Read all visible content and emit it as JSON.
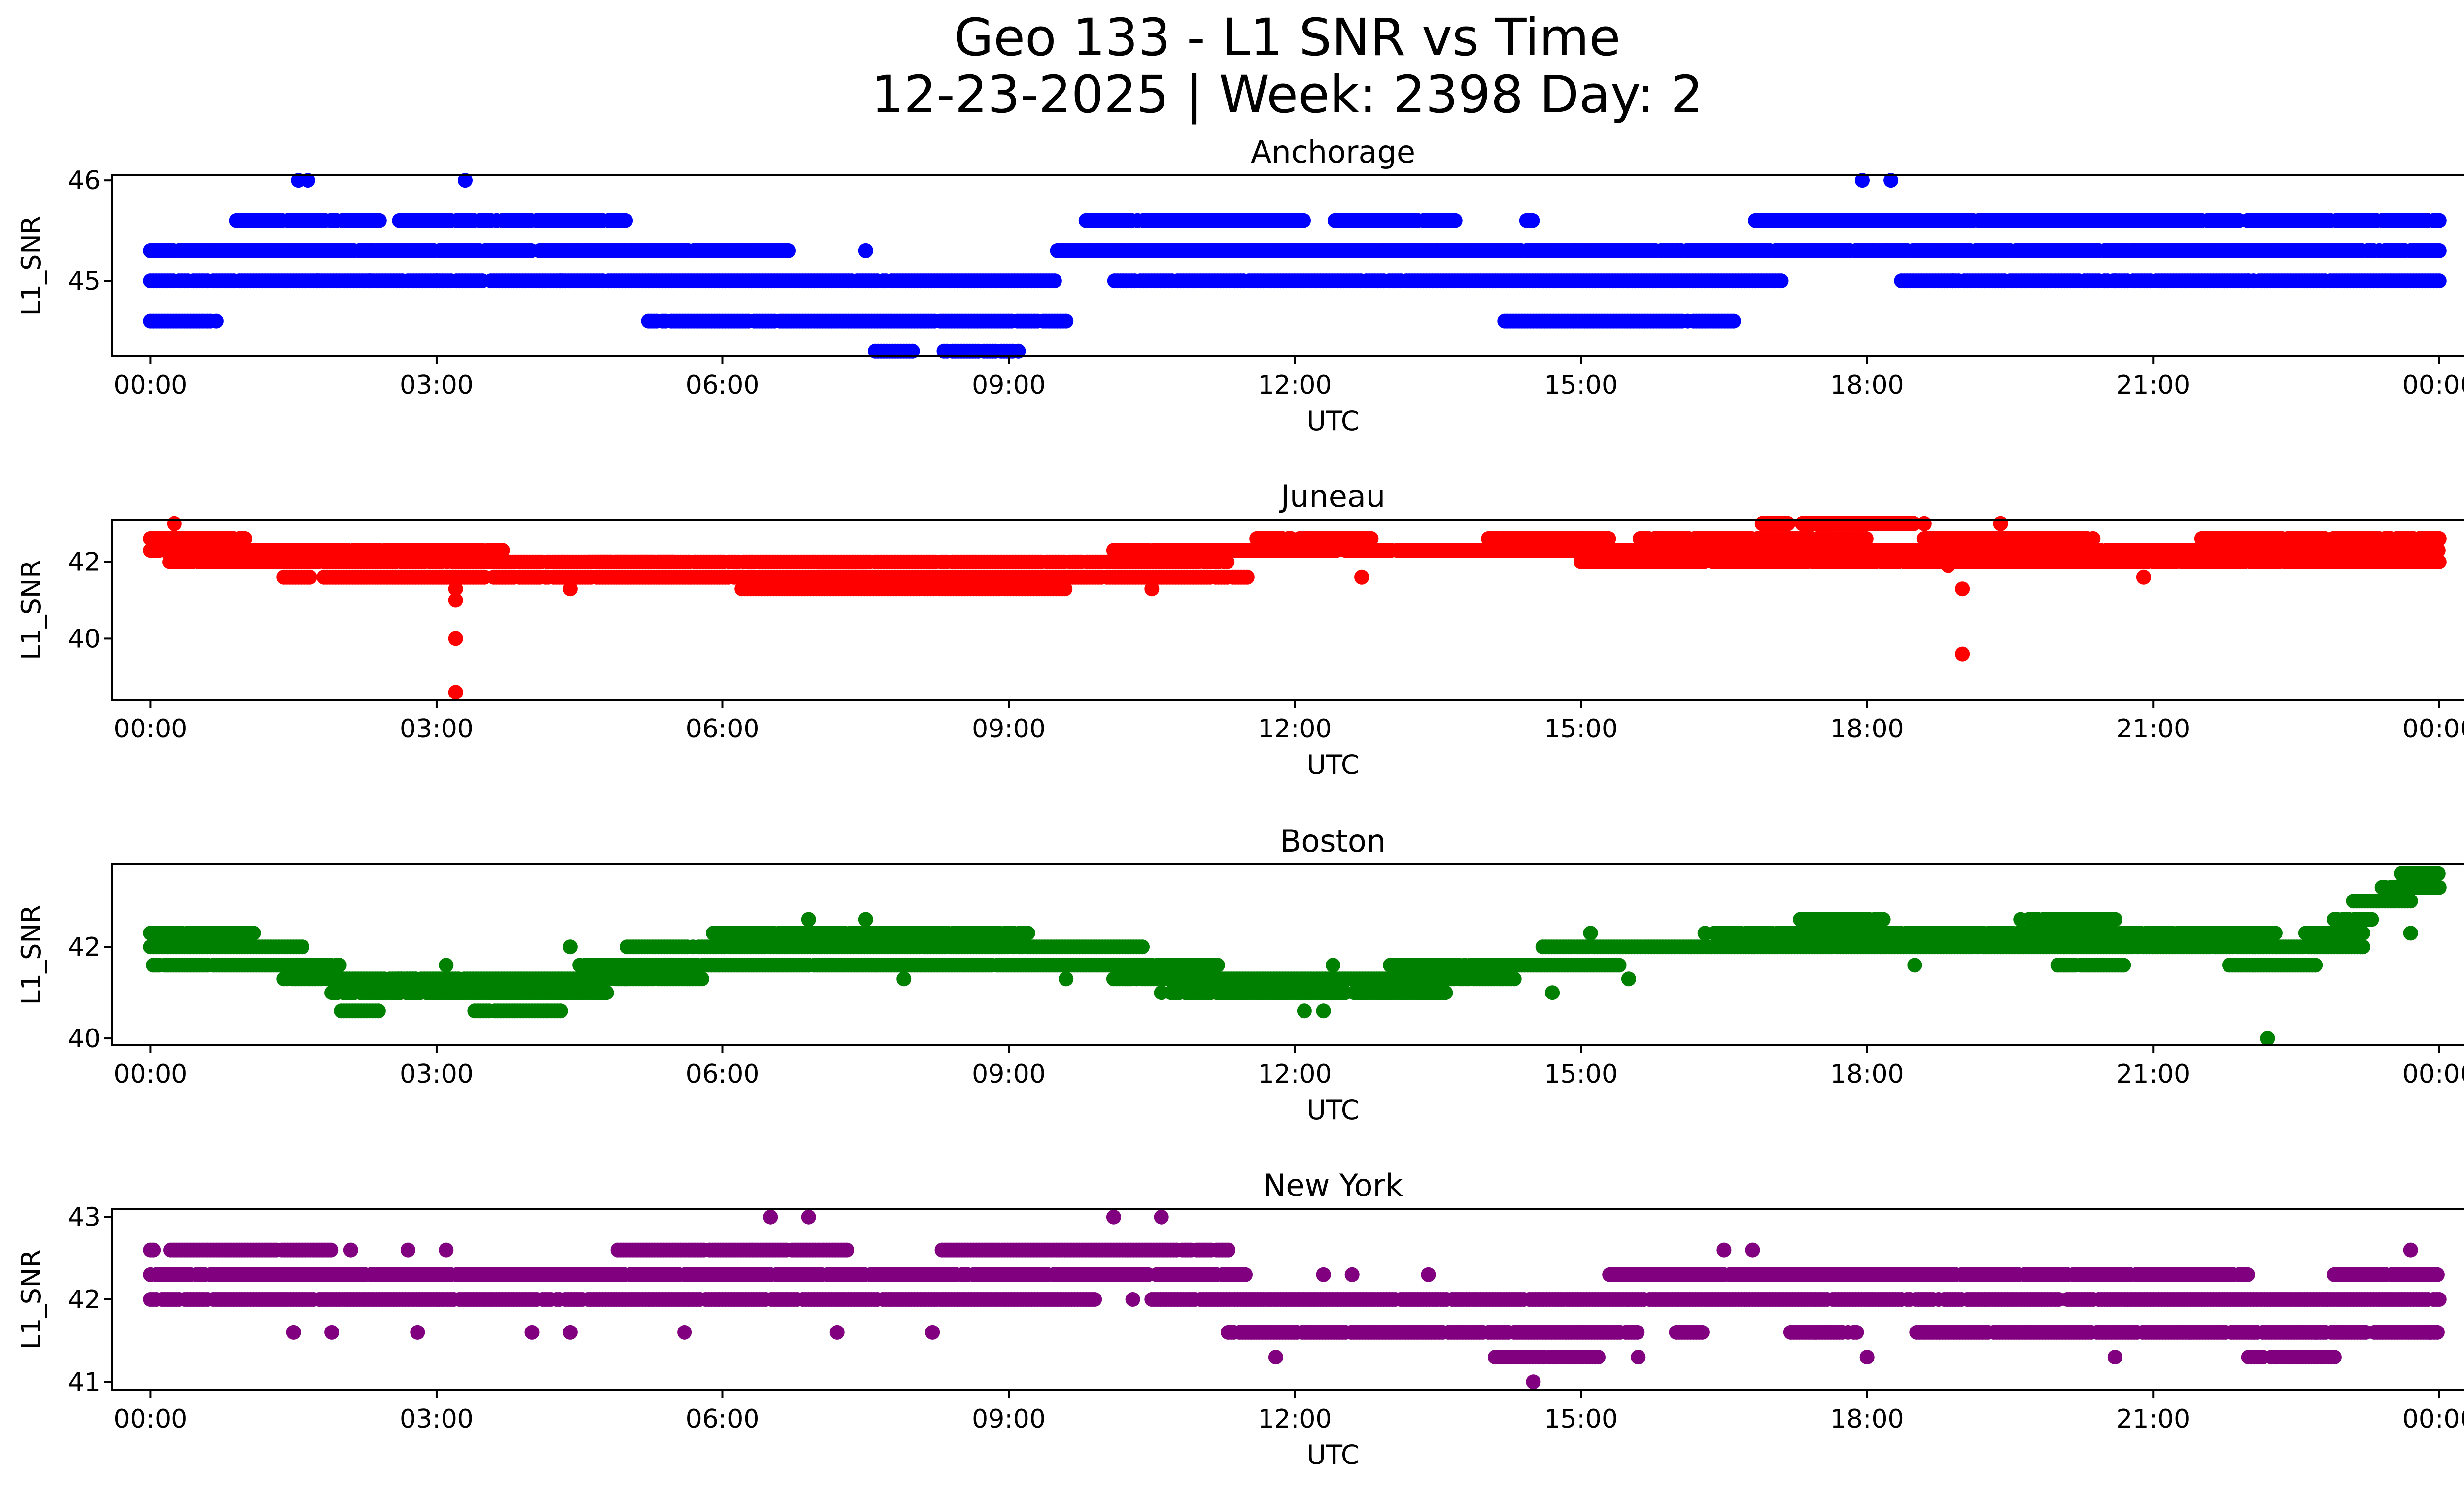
{
  "figure": {
    "title_line1": "Geo 133 - L1 SNR vs Time",
    "title_line2": "12-23-2025 | Week: 2398 Day: 2"
  },
  "chart_data": [
    {
      "type": "scatter",
      "title": "Anchorage",
      "xlabel": "UTC",
      "ylabel": "L1_SNR",
      "color": "#0000ff",
      "xlim": [
        -0.4,
        25.2
      ],
      "ylim": [
        44.25,
        46.05
      ],
      "xticks": [
        0,
        3,
        6,
        9,
        12,
        15,
        18,
        21,
        24
      ],
      "xtick_labels": [
        "00:00",
        "03:00",
        "06:00",
        "09:00",
        "12:00",
        "15:00",
        "18:00",
        "21:00",
        "00:00"
      ],
      "yticks": [
        45,
        46
      ],
      "ytick_labels": [
        "45",
        "46"
      ],
      "bands": [
        {
          "y": 45.3,
          "start": 0.0,
          "end": 24.0,
          "gaps": [
            [
              6.7,
              9.5
            ]
          ]
        },
        {
          "y": 45.0,
          "start": 0.0,
          "end": 24.0,
          "gaps": [
            [
              9.5,
              10.1
            ],
            [
              17.1,
              18.3
            ]
          ]
        },
        {
          "y": 45.6,
          "start": 0.9,
          "end": 24.0,
          "gaps": [
            [
              2.4,
              2.6
            ],
            [
              5.0,
              9.8
            ],
            [
              12.1,
              12.4
            ],
            [
              13.7,
              14.4
            ],
            [
              14.5,
              16.8
            ]
          ]
        },
        {
          "y": 44.6,
          "start": 0.0,
          "end": 9.6,
          "gaps": [
            [
              0.7,
              5.2
            ]
          ]
        },
        {
          "y": 44.6,
          "start": 14.2,
          "end": 16.6,
          "gaps": []
        },
        {
          "y": 44.3,
          "start": 7.6,
          "end": 9.1,
          "gaps": [
            [
              8.0,
              8.3
            ]
          ]
        }
      ],
      "points": [
        [
          1.55,
          46
        ],
        [
          1.65,
          46
        ],
        [
          3.3,
          46
        ],
        [
          17.95,
          46
        ],
        [
          18.25,
          46
        ],
        [
          1.75,
          45
        ],
        [
          2.3,
          45
        ],
        [
          3.0,
          45
        ],
        [
          4.3,
          45
        ],
        [
          18.9,
          45
        ],
        [
          20.6,
          45
        ],
        [
          22.0,
          45
        ],
        [
          7.5,
          45.3
        ],
        [
          21.4,
          45.6
        ]
      ]
    },
    {
      "type": "scatter",
      "title": "Juneau",
      "xlabel": "UTC",
      "ylabel": "L1_SNR",
      "color": "#ff0000",
      "xlim": [
        -0.4,
        25.2
      ],
      "ylim": [
        38.4,
        43.1
      ],
      "xticks": [
        0,
        3,
        6,
        9,
        12,
        15,
        18,
        21,
        24
      ],
      "xtick_labels": [
        "00:00",
        "03:00",
        "06:00",
        "09:00",
        "12:00",
        "15:00",
        "18:00",
        "21:00",
        "00:00"
      ],
      "yticks": [
        40,
        42
      ],
      "ytick_labels": [
        "40",
        "42"
      ],
      "bands": [
        {
          "y": 42.6,
          "start": 0.0,
          "end": 1.0,
          "gaps": []
        },
        {
          "y": 42.3,
          "start": 0.0,
          "end": 3.7,
          "gaps": []
        },
        {
          "y": 42.0,
          "start": 0.2,
          "end": 5.5,
          "gaps": []
        },
        {
          "y": 41.6,
          "start": 1.4,
          "end": 3.5,
          "gaps": [
            [
              1.7,
              1.8
            ]
          ]
        },
        {
          "y": 41.6,
          "start": 3.6,
          "end": 7.5,
          "gaps": []
        },
        {
          "y": 42.0,
          "start": 4.6,
          "end": 11.3,
          "gaps": []
        },
        {
          "y": 41.3,
          "start": 6.2,
          "end": 9.6,
          "gaps": []
        },
        {
          "y": 41.6,
          "start": 7.0,
          "end": 11.5,
          "gaps": []
        },
        {
          "y": 42.3,
          "start": 10.1,
          "end": 18.5,
          "gaps": []
        },
        {
          "y": 42.6,
          "start": 11.6,
          "end": 18.0,
          "gaps": [
            [
              12.8,
              14.0
            ],
            [
              15.3,
              15.6
            ]
          ]
        },
        {
          "y": 43.0,
          "start": 16.9,
          "end": 18.5,
          "gaps": [
            [
              17.2,
              17.3
            ]
          ]
        },
        {
          "y": 42.0,
          "start": 15.0,
          "end": 24.0,
          "gaps": []
        },
        {
          "y": 42.6,
          "start": 18.6,
          "end": 24.0,
          "gaps": [
            [
              20.4,
              21.5
            ]
          ]
        },
        {
          "y": 42.3,
          "start": 18.2,
          "end": 24.0,
          "gaps": []
        }
      ],
      "points": [
        [
          0.25,
          43.0
        ],
        [
          3.2,
          41.3
        ],
        [
          3.2,
          41.0
        ],
        [
          3.2,
          40.0
        ],
        [
          3.2,
          38.6
        ],
        [
          4.4,
          41.3
        ],
        [
          10.5,
          41.3
        ],
        [
          12.7,
          41.6
        ],
        [
          19.0,
          41.3
        ],
        [
          19.0,
          39.6
        ],
        [
          19.4,
          43.0
        ],
        [
          20.9,
          41.6
        ],
        [
          18.85,
          41.9
        ],
        [
          18.6,
          43.0
        ]
      ]
    },
    {
      "type": "scatter",
      "title": "Boston",
      "xlabel": "UTC",
      "ylabel": "L1_SNR",
      "color": "#008000",
      "xlim": [
        -0.4,
        25.2
      ],
      "ylim": [
        39.85,
        43.8
      ],
      "xticks": [
        0,
        3,
        6,
        9,
        12,
        15,
        18,
        21,
        24
      ],
      "xtick_labels": [
        "00:00",
        "03:00",
        "06:00",
        "09:00",
        "12:00",
        "15:00",
        "18:00",
        "21:00",
        "00:00"
      ],
      "yticks": [
        40,
        42
      ],
      "ytick_labels": [
        "40",
        "42"
      ],
      "bands": [
        {
          "y": 42.3,
          "start": 0.0,
          "end": 1.1,
          "gaps": []
        },
        {
          "y": 42.0,
          "start": 0.0,
          "end": 1.6,
          "gaps": []
        },
        {
          "y": 41.6,
          "start": 0.0,
          "end": 2.0,
          "gaps": []
        },
        {
          "y": 41.3,
          "start": 1.4,
          "end": 2.8,
          "gaps": []
        },
        {
          "y": 41.0,
          "start": 1.9,
          "end": 4.8,
          "gaps": []
        },
        {
          "y": 41.3,
          "start": 2.6,
          "end": 5.8,
          "gaps": []
        },
        {
          "y": 40.6,
          "start": 2.0,
          "end": 2.4,
          "gaps": []
        },
        {
          "y": 40.6,
          "start": 3.4,
          "end": 4.3,
          "gaps": []
        },
        {
          "y": 41.6,
          "start": 4.5,
          "end": 11.2,
          "gaps": []
        },
        {
          "y": 42.0,
          "start": 5.0,
          "end": 10.4,
          "gaps": []
        },
        {
          "y": 42.3,
          "start": 5.9,
          "end": 9.2,
          "gaps": []
        },
        {
          "y": 41.3,
          "start": 10.1,
          "end": 14.3,
          "gaps": []
        },
        {
          "y": 41.0,
          "start": 10.7,
          "end": 13.6,
          "gaps": []
        },
        {
          "y": 41.6,
          "start": 13.0,
          "end": 15.4,
          "gaps": []
        },
        {
          "y": 42.0,
          "start": 14.6,
          "end": 22.3,
          "gaps": []
        },
        {
          "y": 42.3,
          "start": 16.4,
          "end": 22.3,
          "gaps": []
        },
        {
          "y": 42.6,
          "start": 17.3,
          "end": 20.6,
          "gaps": [
            [
              18.2,
              19.6
            ]
          ]
        },
        {
          "y": 41.6,
          "start": 20.0,
          "end": 20.7,
          "gaps": []
        },
        {
          "y": 41.6,
          "start": 21.8,
          "end": 22.7,
          "gaps": []
        },
        {
          "y": 42.0,
          "start": 22.3,
          "end": 23.2,
          "gaps": []
        },
        {
          "y": 42.3,
          "start": 22.6,
          "end": 23.2,
          "gaps": []
        },
        {
          "y": 42.6,
          "start": 22.9,
          "end": 23.3,
          "gaps": []
        },
        {
          "y": 43.0,
          "start": 23.1,
          "end": 23.7,
          "gaps": []
        },
        {
          "y": 43.3,
          "start": 23.4,
          "end": 24.0,
          "gaps": []
        },
        {
          "y": 43.6,
          "start": 23.6,
          "end": 24.0,
          "gaps": []
        }
      ],
      "points": [
        [
          3.1,
          41.6
        ],
        [
          4.4,
          42.0
        ],
        [
          6.9,
          42.6
        ],
        [
          7.5,
          42.6
        ],
        [
          7.9,
          41.3
        ],
        [
          9.6,
          41.3
        ],
        [
          10.6,
          41.0
        ],
        [
          12.3,
          40.6
        ],
        [
          12.1,
          40.6
        ],
        [
          12.4,
          41.6
        ],
        [
          14.7,
          41.0
        ],
        [
          15.1,
          42.3
        ],
        [
          15.5,
          41.3
        ],
        [
          16.3,
          42.3
        ],
        [
          18.5,
          41.6
        ],
        [
          22.2,
          40.0
        ],
        [
          23.7,
          42.3
        ]
      ]
    },
    {
      "type": "scatter",
      "title": "New York",
      "xlabel": "UTC",
      "ylabel": "L1_SNR",
      "color": "#800080",
      "xlim": [
        -0.4,
        25.2
      ],
      "ylim": [
        40.9,
        43.1
      ],
      "xticks": [
        0,
        3,
        6,
        9,
        12,
        15,
        18,
        21,
        24
      ],
      "xtick_labels": [
        "00:00",
        "03:00",
        "06:00",
        "09:00",
        "12:00",
        "15:00",
        "18:00",
        "21:00",
        "00:00"
      ],
      "yticks": [
        41,
        42,
        43
      ],
      "ytick_labels": [
        "41",
        "42",
        "43"
      ],
      "bands": [
        {
          "y": 42.6,
          "start": 0.0,
          "end": 1.9,
          "gaps": [
            [
              0.05,
              0.2
            ]
          ]
        },
        {
          "y": 42.3,
          "start": 0.0,
          "end": 3.8,
          "gaps": []
        },
        {
          "y": 42.0,
          "start": 0.0,
          "end": 9.9,
          "gaps": []
        },
        {
          "y": 42.3,
          "start": 3.8,
          "end": 11.5,
          "gaps": []
        },
        {
          "y": 42.6,
          "start": 4.9,
          "end": 7.3,
          "gaps": []
        },
        {
          "y": 42.6,
          "start": 8.3,
          "end": 11.3,
          "gaps": []
        },
        {
          "y": 42.0,
          "start": 10.5,
          "end": 24.0,
          "gaps": []
        },
        {
          "y": 41.6,
          "start": 11.3,
          "end": 15.6,
          "gaps": []
        },
        {
          "y": 41.3,
          "start": 14.1,
          "end": 15.2,
          "gaps": []
        },
        {
          "y": 42.3,
          "start": 15.3,
          "end": 22.0,
          "gaps": []
        },
        {
          "y": 41.6,
          "start": 16.0,
          "end": 24.0,
          "gaps": [
            [
              16.3,
              17.2
            ],
            [
              17.9,
              18.5
            ]
          ]
        },
        {
          "y": 41.3,
          "start": 22.0,
          "end": 22.9,
          "gaps": []
        },
        {
          "y": 42.3,
          "start": 22.9,
          "end": 24.0,
          "gaps": []
        }
      ],
      "points": [
        [
          1.5,
          41.6
        ],
        [
          1.9,
          41.6
        ],
        [
          2.1,
          42.6
        ],
        [
          2.7,
          42.6
        ],
        [
          2.8,
          41.6
        ],
        [
          3.1,
          42.6
        ],
        [
          4.0,
          41.6
        ],
        [
          4.4,
          41.6
        ],
        [
          5.6,
          41.6
        ],
        [
          6.5,
          43.0
        ],
        [
          6.9,
          43.0
        ],
        [
          7.2,
          41.6
        ],
        [
          8.2,
          41.6
        ],
        [
          10.1,
          43.0
        ],
        [
          10.6,
          43.0
        ],
        [
          10.3,
          42.0
        ],
        [
          11.8,
          41.3
        ],
        [
          12.3,
          42.3
        ],
        [
          12.6,
          42.3
        ],
        [
          13.4,
          42.3
        ],
        [
          14.5,
          41.0
        ],
        [
          15.6,
          41.3
        ],
        [
          16.5,
          42.6
        ],
        [
          16.8,
          42.6
        ],
        [
          18.0,
          41.3
        ],
        [
          20.6,
          41.3
        ],
        [
          23.7,
          42.6
        ],
        [
          23.9,
          41.6
        ]
      ]
    }
  ]
}
